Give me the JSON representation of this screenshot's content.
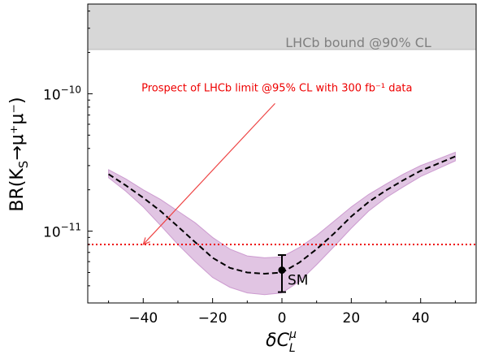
{
  "chart_data": {
    "type": "line",
    "title": "",
    "xlabel": "δC_L^μ",
    "ylabel": "BR(K_S→μ⁺μ⁻)",
    "xlim": [
      -56,
      56
    ],
    "ylim": [
      3e-12,
      4.5e-10
    ],
    "yscale": "log",
    "grid": false,
    "x_ticks": [
      -40,
      -20,
      0,
      20,
      40
    ],
    "x_tick_labels": [
      "−40",
      "−20",
      "0",
      "20",
      "40"
    ],
    "y_ticks": [
      1e-11,
      1e-10
    ],
    "y_tick_labels": [
      {
        "mantissa": "10",
        "exponent": "−11"
      },
      {
        "mantissa": "10",
        "exponent": "−10"
      }
    ],
    "series": [
      {
        "style": "dashed",
        "color": "#000000",
        "x": [
          -50,
          -45,
          -40,
          -35,
          -30,
          -25,
          -20,
          -15,
          -10,
          -5,
          0,
          5,
          10,
          15,
          20,
          25,
          30,
          35,
          40,
          45,
          50
        ],
        "y": [
          2.6e-11,
          2.15e-11,
          1.75e-11,
          1.4e-11,
          1.08e-11,
          8.3e-12,
          6.4e-12,
          5.4e-12,
          5e-12,
          4.9e-12,
          5e-12,
          5.9e-12,
          7.4e-12,
          9.6e-12,
          1.28e-11,
          1.63e-11,
          1.98e-11,
          2.35e-11,
          2.75e-11,
          3.1e-11,
          3.5e-11
        ]
      }
    ],
    "band": {
      "color": "#c48bc8",
      "x": [
        -50,
        -45,
        -40,
        -35,
        -30,
        -25,
        -20,
        -15,
        -10,
        -5,
        0,
        5,
        10,
        15,
        20,
        25,
        30,
        35,
        40,
        45,
        50
      ],
      "lower": [
        2.45e-11,
        1.95e-11,
        1.5e-11,
        1.1e-11,
        8e-12,
        6e-12,
        4.6e-12,
        3.9e-12,
        3.55e-12,
        3.45e-12,
        3.55e-12,
        4.3e-12,
        5.7e-12,
        7.7e-12,
        1.05e-11,
        1.4e-11,
        1.75e-11,
        2.1e-11,
        2.5e-11,
        2.85e-11,
        3.25e-11
      ],
      "upper": [
        2.8e-11,
        2.4e-11,
        2e-11,
        1.7e-11,
        1.4e-11,
        1.15e-11,
        9e-12,
        7.4e-12,
        6.6e-12,
        6.4e-12,
        6.5e-12,
        7.6e-12,
        9.3e-12,
        1.18e-11,
        1.5e-11,
        1.85e-11,
        2.2e-11,
        2.6e-11,
        3e-11,
        3.35e-11,
        3.75e-11
      ]
    },
    "sm_point": {
      "x": 0,
      "y": 5.2e-12,
      "y_err_low": 3.6e-12,
      "y_err_high": 6.7e-12,
      "label": "SM"
    },
    "excluded_region": {
      "y_from": 2.1e-10,
      "label": "LHCb bound @90% CL",
      "color": "#d7d7d7"
    },
    "prospect_line": {
      "y": 8e-12,
      "color": "#ee0000",
      "style": "dotted"
    },
    "annotation": {
      "text": "Prospect of LHCb limit @95% CL with 300 fb⁻¹ data",
      "color": "#ee0000",
      "arrow_from": {
        "x": -2,
        "y": 8.5e-11
      },
      "arrow_to": {
        "x": -40,
        "y": 8e-12
      }
    }
  }
}
